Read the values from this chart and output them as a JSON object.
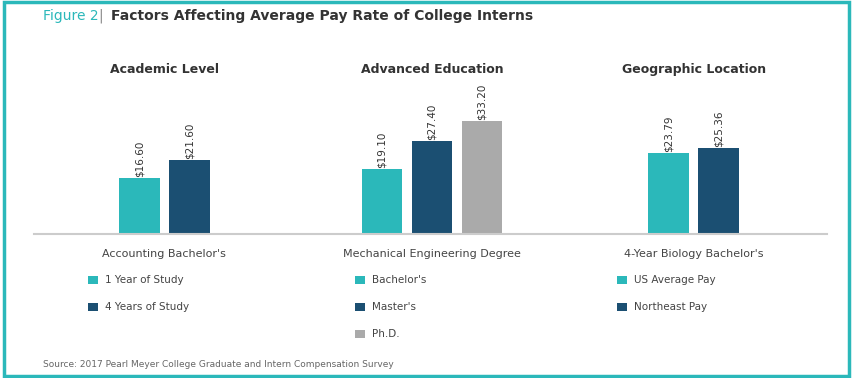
{
  "title_figure2": "Figure 2",
  "title_pipe": "  |  ",
  "title_main": "Factors Affecting Average Pay Rate of College Interns",
  "title_color_figure2": "#2bb8ba",
  "title_color_main": "#333333",
  "background_color": "#ffffff",
  "border_color": "#2bb8ba",
  "divider_color": "#cccccc",
  "groups": [
    {
      "subtitle": "Academic Level",
      "xlabel": "Accounting Bachelor's",
      "bars": [
        {
          "label": "1 Year of Study",
          "value": 16.6,
          "color": "#2bb8ba"
        },
        {
          "label": "4 Years of Study",
          "value": 21.6,
          "color": "#1b4f72"
        }
      ]
    },
    {
      "subtitle": "Advanced Education",
      "xlabel": "Mechanical Engineering Degree",
      "bars": [
        {
          "label": "Bachelor's",
          "value": 19.1,
          "color": "#2bb8ba"
        },
        {
          "label": "Master's",
          "value": 27.4,
          "color": "#1b4f72"
        },
        {
          "label": "Ph.D.",
          "value": 33.2,
          "color": "#aaaaaa"
        }
      ]
    },
    {
      "subtitle": "Geographic Location",
      "xlabel": "4-Year Biology Bachelor's",
      "bars": [
        {
          "label": "US Average Pay",
          "value": 23.79,
          "color": "#2bb8ba"
        },
        {
          "label": "Northeast Pay",
          "value": 25.36,
          "color": "#1b4f72"
        }
      ]
    }
  ],
  "legend_cols": [
    [
      [
        "1 Year of Study",
        "#2bb8ba"
      ],
      [
        "4 Years of Study",
        "#1b4f72"
      ]
    ],
    [
      [
        "Bachelor's",
        "#2bb8ba"
      ],
      [
        "Master's",
        "#1b4f72"
      ],
      [
        "Ph.D.",
        "#aaaaaa"
      ]
    ],
    [
      [
        "US Average Pay",
        "#2bb8ba"
      ],
      [
        "Northeast Pay",
        "#1b4f72"
      ]
    ]
  ],
  "source_text": "Source: 2017 Pearl Meyer College Graduate and Intern Compensation Survey",
  "bar_width": 0.35,
  "bar_gap": 0.08,
  "group_centers": [
    1.0,
    3.3,
    5.55
  ],
  "xlim": [
    0.1,
    6.7
  ],
  "ylim": [
    0,
    42
  ],
  "value_fontsize": 7.5,
  "subtitle_fontsize": 9,
  "xlabel_fontsize": 8,
  "legend_fontsize": 7.5,
  "source_fontsize": 6.5,
  "title_fontsize": 10
}
